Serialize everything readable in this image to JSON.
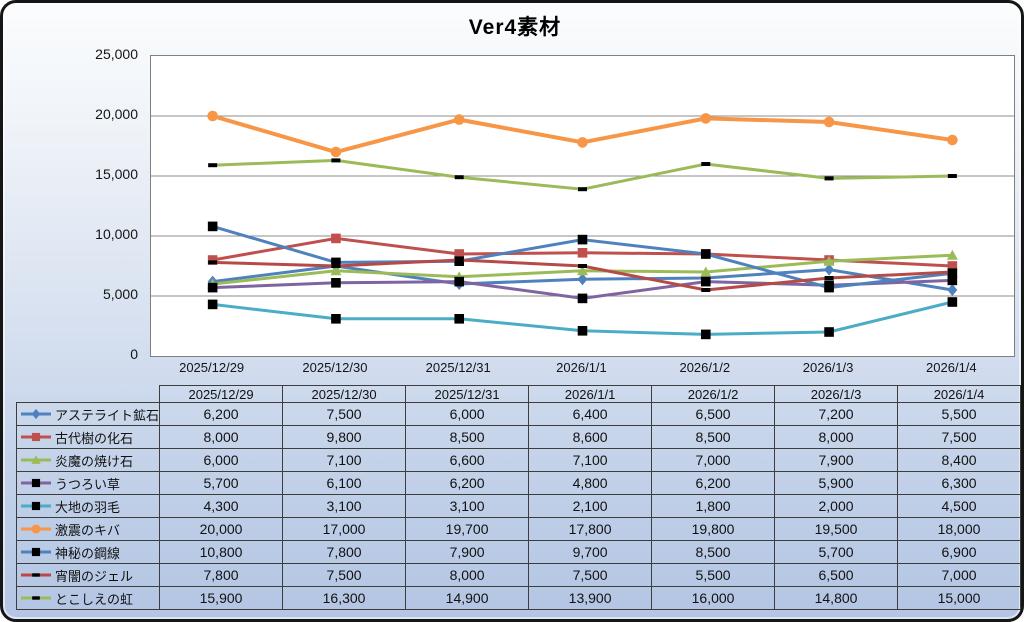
{
  "chart_data": {
    "type": "line",
    "title": "Ver4素材",
    "categories": [
      "2025/12/29",
      "2025/12/30",
      "2025/12/31",
      "2026/1/1",
      "2026/1/2",
      "2026/1/3",
      "2026/1/4"
    ],
    "series": [
      {
        "name": "アステライト鉱石",
        "color": "#4F81BD",
        "marker": "diamond",
        "marker_color": "#4F81BD",
        "line_width": 3,
        "values": [
          6200,
          7500,
          6000,
          6400,
          6500,
          7200,
          5500
        ]
      },
      {
        "name": "古代樹の化石",
        "color": "#C0504D",
        "marker": "square",
        "marker_color": "#C0504D",
        "line_width": 3,
        "values": [
          8000,
          9800,
          8500,
          8600,
          8500,
          8000,
          7500
        ]
      },
      {
        "name": "炎魔の焼け石",
        "color": "#9BBB59",
        "marker": "triangle",
        "marker_color": "#9BBB59",
        "line_width": 3,
        "values": [
          6000,
          7100,
          6600,
          7100,
          7000,
          7900,
          8400
        ]
      },
      {
        "name": "うつろい草",
        "color": "#8064A2",
        "marker": "square",
        "marker_color": "#000000",
        "line_width": 3,
        "values": [
          5700,
          6100,
          6200,
          4800,
          6200,
          5900,
          6300
        ]
      },
      {
        "name": "大地の羽毛",
        "color": "#4BACC6",
        "marker": "square",
        "marker_color": "#000000",
        "line_width": 3,
        "values": [
          4300,
          3100,
          3100,
          2100,
          1800,
          2000,
          4500
        ]
      },
      {
        "name": "激震のキバ",
        "color": "#F79646",
        "marker": "circle",
        "marker_color": "#F79646",
        "line_width": 4,
        "values": [
          20000,
          17000,
          19700,
          17800,
          19800,
          19500,
          18000
        ]
      },
      {
        "name": "神秘の鋼線",
        "color": "#4F81BD",
        "marker": "square",
        "marker_color": "#000000",
        "line_width": 3,
        "values": [
          10800,
          7800,
          7900,
          9700,
          8500,
          5700,
          6900
        ]
      },
      {
        "name": "宵闇のジェル",
        "color": "#B64A47",
        "marker": "dash",
        "marker_color": "#000000",
        "line_width": 3,
        "values": [
          7800,
          7500,
          8000,
          7500,
          5500,
          6500,
          7000
        ]
      },
      {
        "name": "とこしえの虹",
        "color": "#9BBB59",
        "marker": "dash",
        "marker_color": "#000000",
        "line_width": 3,
        "values": [
          15900,
          16300,
          14900,
          13900,
          16000,
          14800,
          15000
        ]
      }
    ],
    "ylim": [
      0,
      25000
    ],
    "ytick_interval": 5000,
    "yticks": [
      "0",
      "5,000",
      "10,000",
      "15,000",
      "20,000",
      "25,000"
    ],
    "grid": true,
    "gridline_color": "#8c8c8c",
    "legend_position": "table-left-column"
  },
  "table": {
    "column_headers": [
      "2025/12/29",
      "2025/12/30",
      "2025/12/31",
      "2026/1/1",
      "2026/1/2",
      "2026/1/3",
      "2026/1/4"
    ],
    "rows": [
      {
        "label": "アステライト鉱石",
        "values": [
          "6,200",
          "7,500",
          "6,000",
          "6,400",
          "6,500",
          "7,200",
          "5,500"
        ]
      },
      {
        "label": "古代樹の化石",
        "values": [
          "8,000",
          "9,800",
          "8,500",
          "8,600",
          "8,500",
          "8,000",
          "7,500"
        ]
      },
      {
        "label": "炎魔の焼け石",
        "values": [
          "6,000",
          "7,100",
          "6,600",
          "7,100",
          "7,000",
          "7,900",
          "8,400"
        ]
      },
      {
        "label": "うつろい草",
        "values": [
          "5,700",
          "6,100",
          "6,200",
          "4,800",
          "6,200",
          "5,900",
          "6,300"
        ]
      },
      {
        "label": "大地の羽毛",
        "values": [
          "4,300",
          "3,100",
          "3,100",
          "2,100",
          "1,800",
          "2,000",
          "4,500"
        ]
      },
      {
        "label": "激震のキバ",
        "values": [
          "20,000",
          "17,000",
          "19,700",
          "17,800",
          "19,800",
          "19,500",
          "18,000"
        ]
      },
      {
        "label": "神秘の鋼線",
        "values": [
          "10,800",
          "7,800",
          "7,900",
          "9,700",
          "8,500",
          "5,700",
          "6,900"
        ]
      },
      {
        "label": "宵闇のジェル",
        "values": [
          "7,800",
          "7,500",
          "8,000",
          "7,500",
          "5,500",
          "6,500",
          "7,000"
        ]
      },
      {
        "label": "とこしえの虹",
        "values": [
          "15,900",
          "16,300",
          "14,900",
          "13,900",
          "16,000",
          "14,800",
          "15,000"
        ]
      }
    ]
  }
}
